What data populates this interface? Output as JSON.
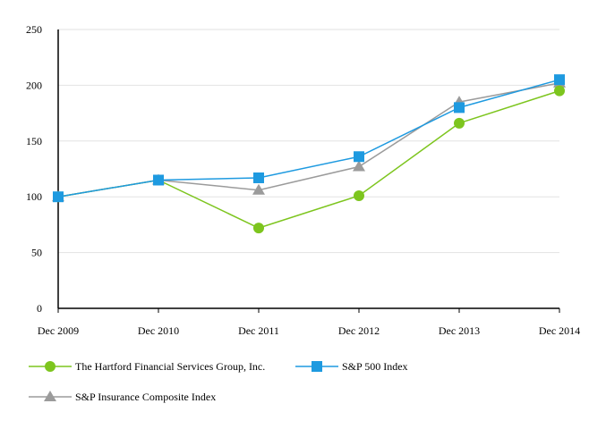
{
  "chart_data": {
    "type": "line",
    "title": "",
    "xlabel": "",
    "ylabel": "",
    "categories": [
      "Dec 2009",
      "Dec 2010",
      "Dec 2011",
      "Dec 2012",
      "Dec 2013",
      "Dec 2014"
    ],
    "ylim": [
      0,
      250
    ],
    "yticks": [
      "0",
      "50",
      "100",
      "150",
      "200",
      "250"
    ],
    "grid": true,
    "legend_position": "bottom",
    "series": [
      {
        "name": "The Hartford Financial Services Group, Inc.",
        "marker": "circle",
        "color": "#7dc51e",
        "values": [
          100,
          115,
          72,
          101,
          166,
          195
        ]
      },
      {
        "name": "S&P 500 Index",
        "marker": "square",
        "color": "#1e9ae0",
        "values": [
          100,
          115,
          117,
          136,
          180,
          205
        ]
      },
      {
        "name": "S&P Insurance Composite Index",
        "marker": "triangle",
        "color": "#9b9b9b",
        "values": [
          100,
          115,
          106,
          127,
          185,
          202
        ]
      }
    ]
  }
}
